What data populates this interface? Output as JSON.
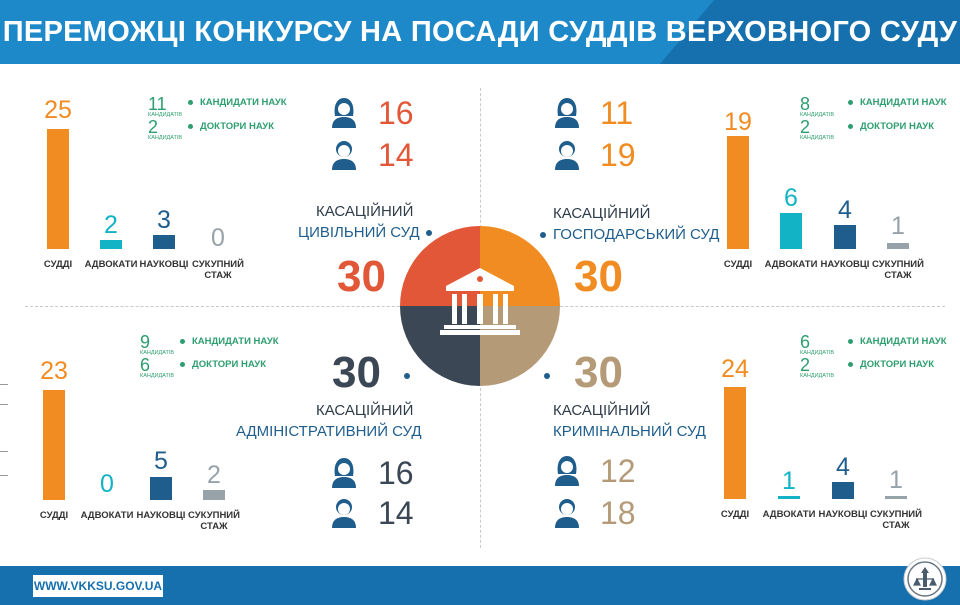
{
  "header": {
    "title": "ПЕРЕМОЖЦІ КОНКУРСУ НА ПОСАДИ СУДДІВ ВЕРХОВНОГО СУДУ"
  },
  "footer": {
    "url": "WWW.VKKSU.GOV.UA"
  },
  "labels": {
    "judges": "СУДДІ",
    "lawyers": "АДВОКАТИ",
    "scientists": "НАУКОВЦІ",
    "experience_l1": "СУКУПНИЙ",
    "experience_l2": "СТАЖ",
    "candidates": "КАНДИДАТИ НАУК",
    "doctors": "ДОКТОРИ НАУК",
    "candidates_small": "КАНДИДАТІВ"
  },
  "colors": {
    "judges": "#f08c21",
    "lawyers": "#11b3c4",
    "scientists": "#1f5e8c",
    "experience": "#98a2a9",
    "civil": "#e25738",
    "commercial": "#f08c21",
    "administrative": "#3b4754",
    "criminal": "#b49a76"
  },
  "courts": {
    "civil": {
      "title1": "КАСАЦІЙНИЙ",
      "title2": "ЦИВІЛЬНИЙ СУД",
      "total": "30",
      "women": "16",
      "men": "14",
      "judges": "25",
      "lawyers": "2",
      "scientists": "3",
      "experience": "0",
      "candidates": "11",
      "doctors": "2"
    },
    "commercial": {
      "title1": "КАСАЦІЙНИЙ",
      "title2": "ГОСПОДАРСЬКИЙ СУД",
      "total": "30",
      "women": "11",
      "men": "19",
      "judges": "19",
      "lawyers": "6",
      "scientists": "4",
      "experience": "1",
      "candidates": "8",
      "doctors": "2"
    },
    "administrative": {
      "title1": "КАСАЦІЙНИЙ",
      "title2": "АДМІНІСТРАТИВНИЙ СУД",
      "total": "30",
      "women": "16",
      "men": "14",
      "judges": "23",
      "lawyers": "0",
      "scientists": "5",
      "experience": "2",
      "candidates": "9",
      "doctors": "6"
    },
    "criminal": {
      "title1": "КАСАЦІЙНИЙ",
      "title2": "КРИМІНАЛЬНИЙ СУД",
      "total": "30",
      "women": "12",
      "men": "18",
      "judges": "24",
      "lawyers": "1",
      "scientists": "4",
      "experience": "1",
      "candidates": "6",
      "doctors": "2"
    }
  },
  "icons": {
    "woman": "woman-icon",
    "man": "man-icon",
    "court": "courthouse-icon",
    "emblem": "emblem-icon"
  }
}
